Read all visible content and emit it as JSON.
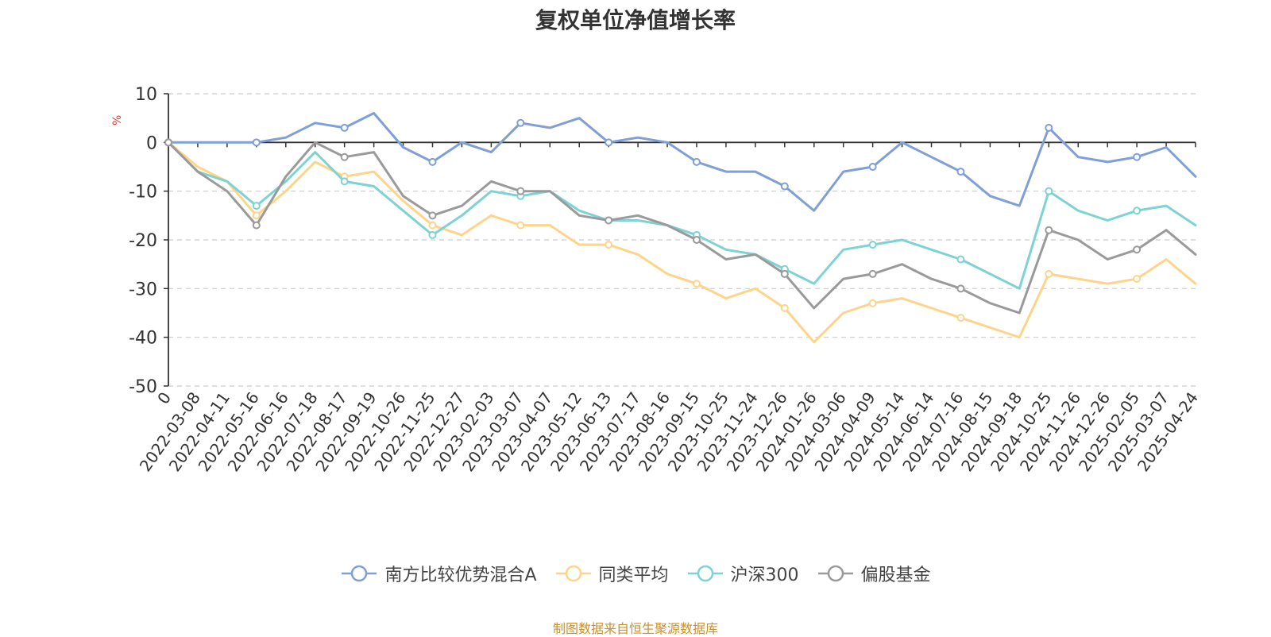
{
  "chart_data": {
    "type": "line",
    "title": "复权单位净值增长率",
    "ylabel": "%",
    "xlabel": "",
    "ylim": [
      -50,
      10
    ],
    "yticks": [
      10,
      0,
      -10,
      -20,
      -30,
      -40,
      -50
    ],
    "grid": true,
    "legend_position": "bottom",
    "x": [
      "0",
      "2022-03-08",
      "2022-04-11",
      "2022-05-16",
      "2022-06-16",
      "2022-07-18",
      "2022-08-17",
      "2022-09-19",
      "2022-10-26",
      "2022-11-25",
      "2022-12-27",
      "2023-02-03",
      "2023-03-07",
      "2023-04-07",
      "2023-05-12",
      "2023-06-13",
      "2023-07-17",
      "2023-08-16",
      "2023-09-15",
      "2023-10-25",
      "2023-11-24",
      "2023-12-26",
      "2024-01-26",
      "2024-03-06",
      "2024-04-09",
      "2024-05-14",
      "2024-06-14",
      "2024-07-16",
      "2024-08-15",
      "2024-09-18",
      "2024-10-25",
      "2024-11-26",
      "2024-12-26",
      "2025-02-05",
      "2025-03-07",
      "2025-04-24"
    ],
    "series": [
      {
        "name": "南方比较优势混合A",
        "color": "#7f9fd6",
        "values": [
          0,
          0,
          0,
          0,
          1,
          4,
          3,
          6,
          -1,
          -4,
          0,
          -2,
          4,
          3,
          5,
          0,
          1,
          0,
          -4,
          -6,
          -6,
          -9,
          -14,
          -6,
          -5,
          0,
          -3,
          -6,
          -11,
          -13,
          3,
          -3,
          -4,
          -3,
          -1,
          -7
        ]
      },
      {
        "name": "同类平均",
        "color": "#fdd48a",
        "values": [
          0,
          -5,
          -8,
          -15,
          -10,
          -4,
          -7,
          -6,
          -12,
          -17,
          -19,
          -15,
          -17,
          -17,
          -21,
          -21,
          -23,
          -27,
          -29,
          -32,
          -30,
          -34,
          -41,
          -35,
          -33,
          -32,
          -34,
          -36,
          -38,
          -40,
          -27,
          -28,
          -29,
          -28,
          -24,
          -29
        ]
      },
      {
        "name": "沪深300",
        "color": "#7dd3d3",
        "values": [
          0,
          -6,
          -8,
          -13,
          -8,
          -2,
          -8,
          -9,
          -14,
          -19,
          -15,
          -10,
          -11,
          -10,
          -14,
          -16,
          -16,
          -17,
          -19,
          -22,
          -23,
          -26,
          -29,
          -22,
          -21,
          -20,
          -22,
          -24,
          -27,
          -30,
          -10,
          -14,
          -16,
          -14,
          -13,
          -17
        ]
      },
      {
        "name": "偏股基金",
        "color": "#9a9a9a",
        "values": [
          0,
          -6,
          -10,
          -17,
          -7,
          0,
          -3,
          -2,
          -11,
          -15,
          -13,
          -8,
          -10,
          -10,
          -15,
          -16,
          -15,
          -17,
          -20,
          -24,
          -23,
          -27,
          -34,
          -28,
          -27,
          -25,
          -28,
          -30,
          -33,
          -35,
          -18,
          -20,
          -24,
          -22,
          -18,
          -23
        ]
      }
    ]
  },
  "source_note": "制图数据来自恒生聚源数据库"
}
